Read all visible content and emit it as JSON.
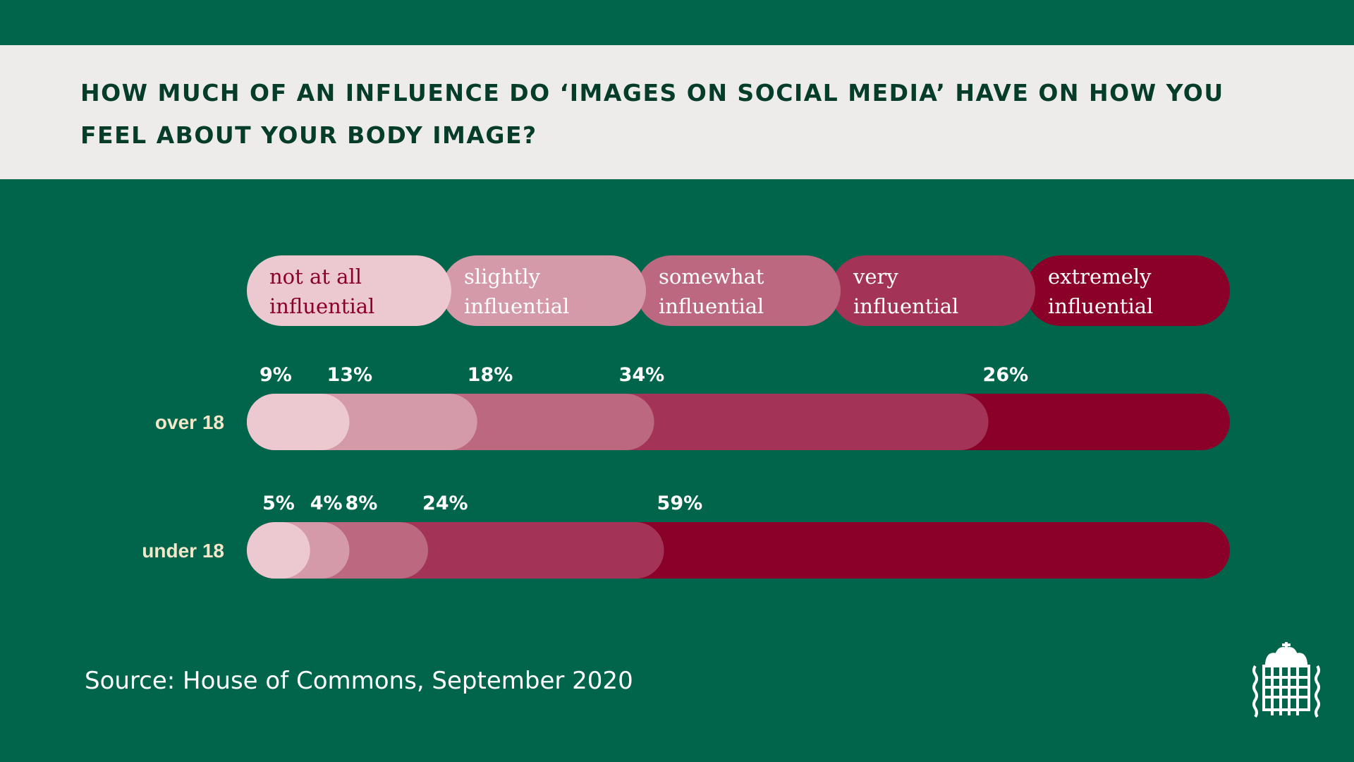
{
  "header": {
    "title": "HOW MUCH OF AN INFLUENCE DO ‘IMAGES ON SOCIAL MEDIA’ HAVE ON HOW YOU FEEL ABOUT YOUR BODY IMAGE?"
  },
  "colors": {
    "background": "#00654a",
    "title_band": "#edecea",
    "title_text": "#053d2a",
    "row_label": "#f4e6c9"
  },
  "chart_data": {
    "type": "bar",
    "stacked": true,
    "orientation": "horizontal",
    "title": "HOW MUCH OF AN INFLUENCE DO ‘IMAGES ON SOCIAL MEDIA’ HAVE ON HOW YOU FEEL ABOUT YOUR BODY IMAGE?",
    "categories": [
      "over 18",
      "under 18"
    ],
    "legend_placement": "top",
    "series": [
      {
        "name": "not at all influential",
        "legend_lines": [
          "not at all",
          "influential"
        ],
        "color": "#ecc9d1",
        "legend_text_color": "#8b0029",
        "values": [
          9,
          5
        ]
      },
      {
        "name": "slightly influential",
        "legend_lines": [
          "slightly",
          "influential"
        ],
        "color": "#d59aaa",
        "legend_text_color": "#ffffff",
        "values": [
          13,
          4
        ]
      },
      {
        "name": "somewhat influential",
        "legend_lines": [
          "somewhat",
          "influential"
        ],
        "color": "#bc6880",
        "legend_text_color": "#ffffff",
        "values": [
          18,
          8
        ]
      },
      {
        "name": "very influential",
        "legend_lines": [
          "very",
          "influential"
        ],
        "color": "#a43457",
        "legend_text_color": "#ffffff",
        "values": [
          34,
          24
        ]
      },
      {
        "name": "extremely influential",
        "legend_lines": [
          "extremely",
          "influential"
        ],
        "color": "#8b0029",
        "legend_text_color": "#ffffff",
        "values": [
          26,
          59
        ]
      }
    ],
    "value_labels": [
      [
        "9%",
        "13%",
        "18%",
        "34%",
        "26%"
      ],
      [
        "5%",
        "4%",
        "8%",
        "24%",
        "59%"
      ]
    ],
    "xlim": [
      0,
      100
    ],
    "grid": false
  },
  "source": "Source: House of Commons, September 2020",
  "logo": {
    "icon": "portcullis-icon"
  }
}
